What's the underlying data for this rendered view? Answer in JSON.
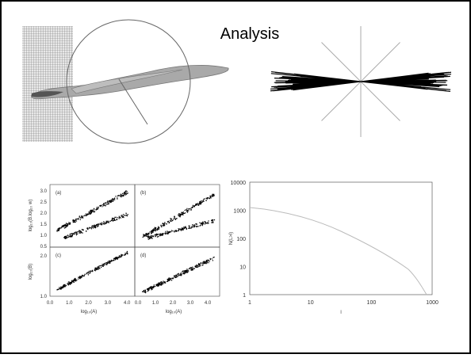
{
  "title": "Analysis",
  "panel_figure": {
    "panels": [
      "(a)",
      "(b)",
      "(c)",
      "(d)"
    ],
    "y_label_top": "log₁₀(B.log₁₀ w)",
    "y_label_bottom": "log₁₀(B)",
    "y_ticks_top": [
      "3.0",
      "2.5",
      "2.0",
      "1.5",
      "1.0",
      "0.5"
    ],
    "y_ticks_bottom": [
      "2.0",
      "1.0"
    ],
    "x_ticks": [
      "0.0",
      "1.0",
      "2.0",
      "3.0",
      "4.0"
    ],
    "x_label": "log₁₀(A)"
  },
  "distribution_plot": {
    "y_ticks": [
      "10000",
      "1000",
      "100",
      "10",
      "1"
    ],
    "x_ticks": [
      "1",
      "10",
      "100",
      "1000"
    ],
    "y_label": "N(L>l)",
    "x_label": "l"
  }
}
